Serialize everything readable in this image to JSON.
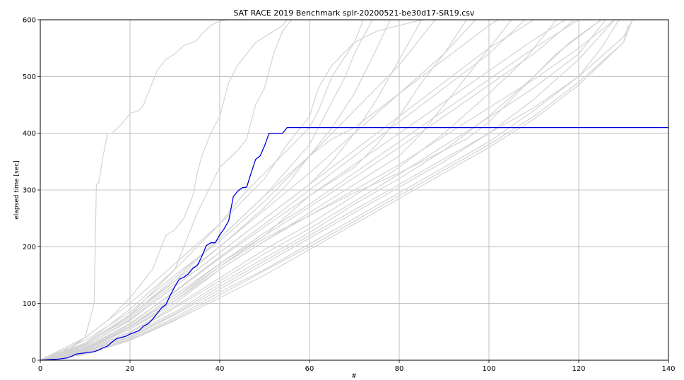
{
  "chart_data": {
    "type": "line",
    "title": "SAT RACE 2019 Benchmark splr-20200521-be30d17-SR19.csv",
    "xlabel": "#",
    "ylabel": "elapsed time [sec]",
    "xlim": [
      0,
      140
    ],
    "ylim": [
      0,
      600
    ],
    "xticks": [
      "0",
      "20",
      "40",
      "60",
      "80",
      "100",
      "120",
      "140"
    ],
    "yticks": [
      "0",
      "100",
      "200",
      "300",
      "400",
      "500",
      "600"
    ],
    "xtick_values": [
      0,
      20,
      40,
      60,
      80,
      100,
      120,
      140
    ],
    "ytick_values": [
      0,
      100,
      200,
      300,
      400,
      500,
      600
    ],
    "grid": true,
    "highlight_color": "#0000dd",
    "background_color": "#d3d3d3",
    "highlight": {
      "x": [
        0,
        2,
        4,
        6,
        7,
        8,
        10,
        12,
        13,
        14,
        15,
        16,
        17,
        18,
        19,
        20,
        21,
        22,
        23,
        24,
        25,
        26,
        27,
        28,
        29,
        30,
        31,
        32,
        33,
        34,
        35,
        36,
        37,
        38,
        39,
        40,
        41,
        42,
        43,
        44,
        45,
        46,
        47,
        48,
        49,
        50,
        51,
        52,
        53,
        54,
        55,
        60,
        80,
        100,
        120,
        140
      ],
      "y": [
        0,
        1,
        2,
        4,
        7,
        11,
        13,
        15,
        18,
        22,
        25,
        32,
        38,
        40,
        42,
        46,
        49,
        52,
        60,
        64,
        72,
        82,
        92,
        98,
        115,
        130,
        143,
        146,
        152,
        162,
        167,
        183,
        202,
        207,
        207,
        221,
        232,
        246,
        288,
        298,
        304,
        305,
        330,
        354,
        360,
        378,
        400,
        400,
        400,
        400,
        410,
        410,
        410,
        410,
        410,
        410
      ]
    },
    "background_series": [
      {
        "x": [
          0,
          5,
          10,
          11,
          12,
          12.5,
          13,
          14,
          15,
          16,
          18,
          20,
          22,
          23,
          24,
          25,
          26,
          28,
          30,
          32,
          34,
          35,
          36,
          38,
          40,
          42,
          44,
          46
        ],
        "y": [
          0,
          10,
          40,
          70,
          100,
          310,
          312,
          360,
          400,
          400,
          415,
          435,
          440,
          450,
          470,
          490,
          510,
          530,
          540,
          555,
          560,
          565,
          575,
          590,
          598,
          600,
          600,
          600
        ]
      },
      {
        "x": [
          0,
          5,
          10,
          15,
          20,
          25,
          28,
          30,
          32,
          34,
          35,
          36,
          38,
          40,
          42,
          44,
          46,
          48,
          50,
          52,
          54,
          55,
          56
        ],
        "y": [
          0,
          15,
          40,
          70,
          110,
          160,
          220,
          230,
          250,
          290,
          330,
          360,
          400,
          430,
          490,
          520,
          540,
          560,
          570,
          580,
          590,
          600,
          600
        ]
      },
      {
        "x": [
          0,
          10,
          20,
          30,
          35,
          40,
          44,
          46,
          48,
          50,
          52,
          54,
          56
        ],
        "y": [
          0,
          30,
          80,
          160,
          260,
          340,
          370,
          390,
          450,
          480,
          540,
          580,
          600
        ]
      },
      {
        "x": [
          0,
          10,
          20,
          30,
          40,
          45,
          50,
          55,
          60,
          62,
          65,
          70,
          72
        ],
        "y": [
          0,
          40,
          100,
          170,
          240,
          290,
          330,
          370,
          410,
          440,
          500,
          560,
          600
        ]
      },
      {
        "x": [
          0,
          10,
          20,
          30,
          40,
          50,
          55,
          60,
          65,
          70,
          75,
          78
        ],
        "y": [
          0,
          30,
          80,
          140,
          200,
          270,
          310,
          360,
          410,
          470,
          550,
          600
        ]
      },
      {
        "x": [
          0,
          10,
          20,
          30,
          40,
          50,
          60,
          65,
          70,
          75,
          80,
          85
        ],
        "y": [
          0,
          25,
          70,
          130,
          190,
          250,
          310,
          350,
          400,
          460,
          530,
          600
        ]
      },
      {
        "x": [
          0,
          10,
          20,
          30,
          40,
          50,
          60,
          70,
          75,
          80,
          85,
          90,
          95
        ],
        "y": [
          0,
          20,
          60,
          110,
          170,
          220,
          290,
          340,
          380,
          430,
          490,
          540,
          600
        ]
      },
      {
        "x": [
          0,
          10,
          20,
          30,
          40,
          50,
          60,
          70,
          80,
          85,
          90,
          95,
          100,
          105
        ],
        "y": [
          0,
          20,
          55,
          100,
          160,
          210,
          260,
          310,
          360,
          400,
          450,
          500,
          550,
          600
        ]
      },
      {
        "x": [
          0,
          10,
          20,
          30,
          40,
          50,
          60,
          70,
          80,
          90,
          100,
          108,
          115
        ],
        "y": [
          0,
          18,
          50,
          95,
          145,
          195,
          240,
          290,
          340,
          400,
          470,
          530,
          600
        ]
      },
      {
        "x": [
          0,
          10,
          20,
          30,
          40,
          50,
          60,
          70,
          80,
          90,
          100,
          110,
          118,
          125
        ],
        "y": [
          0,
          15,
          45,
          85,
          135,
          180,
          225,
          275,
          320,
          370,
          430,
          500,
          560,
          600
        ]
      },
      {
        "x": [
          0,
          10,
          20,
          30,
          40,
          50,
          60,
          70,
          80,
          90,
          100,
          110,
          120,
          128
        ],
        "y": [
          0,
          15,
          40,
          80,
          125,
          170,
          215,
          260,
          305,
          350,
          400,
          460,
          530,
          600
        ]
      },
      {
        "x": [
          0,
          10,
          20,
          30,
          40,
          50,
          60,
          70,
          80,
          90,
          100,
          110,
          120,
          130,
          132
        ],
        "y": [
          0,
          12,
          38,
          75,
          120,
          160,
          205,
          250,
          295,
          340,
          385,
          440,
          500,
          570,
          600
        ]
      },
      {
        "x": [
          0,
          10,
          20,
          30,
          40,
          50,
          60,
          70,
          80,
          90,
          100,
          110,
          120,
          130,
          131
        ],
        "y": [
          0,
          10,
          35,
          70,
          110,
          150,
          195,
          240,
          285,
          330,
          375,
          425,
          485,
          560,
          590
        ]
      },
      {
        "x": [
          0,
          10,
          20,
          30,
          40,
          50,
          60,
          70,
          80,
          90,
          100,
          110,
          120,
          128
        ],
        "y": [
          0,
          18,
          55,
          105,
          160,
          210,
          255,
          300,
          345,
          395,
          445,
          495,
          550,
          600
        ]
      },
      {
        "x": [
          0,
          10,
          20,
          30,
          40,
          50,
          60,
          70,
          80,
          90,
          100,
          110,
          120
        ],
        "y": [
          0,
          20,
          60,
          115,
          170,
          225,
          275,
          330,
          385,
          440,
          495,
          550,
          600
        ]
      },
      {
        "x": [
          0,
          10,
          20,
          30,
          40,
          50,
          60,
          70,
          80,
          90,
          100,
          110,
          117
        ],
        "y": [
          0,
          22,
          65,
          120,
          180,
          235,
          290,
          345,
          400,
          455,
          510,
          565,
          600
        ]
      },
      {
        "x": [
          0,
          10,
          20,
          30,
          40,
          50,
          60,
          70,
          80,
          90,
          100,
          110
        ],
        "y": [
          0,
          25,
          70,
          130,
          190,
          250,
          310,
          370,
          430,
          490,
          550,
          600
        ]
      },
      {
        "x": [
          0,
          10,
          20,
          30,
          40,
          50,
          55,
          60,
          65,
          70,
          75,
          80,
          85,
          90,
          95,
          100,
          102
        ],
        "y": [
          0,
          35,
          85,
          150,
          210,
          280,
          320,
          360,
          390,
          410,
          440,
          470,
          500,
          530,
          560,
          590,
          600
        ]
      },
      {
        "x": [
          0,
          10,
          20,
          30,
          40,
          50,
          55,
          60,
          62,
          65,
          70,
          75,
          80,
          85
        ],
        "y": [
          0,
          30,
          90,
          160,
          240,
          320,
          380,
          430,
          480,
          520,
          560,
          580,
          590,
          600
        ]
      },
      {
        "x": [
          0,
          10,
          20,
          30,
          40,
          50,
          60,
          64,
          68,
          70,
          74
        ],
        "y": [
          0,
          28,
          75,
          140,
          215,
          290,
          380,
          440,
          500,
          540,
          600
        ]
      },
      {
        "x": [
          0,
          10,
          20,
          30,
          40,
          50,
          60,
          70,
          80,
          90,
          95,
          100,
          105,
          110,
          115,
          120,
          125
        ],
        "y": [
          0,
          20,
          55,
          105,
          165,
          215,
          255,
          295,
          330,
          370,
          390,
          420,
          460,
          500,
          540,
          570,
          600
        ]
      },
      {
        "x": [
          0,
          10,
          20,
          30,
          40,
          50,
          60,
          70,
          80,
          90,
          100,
          110,
          120,
          125,
          129
        ],
        "y": [
          0,
          14,
          42,
          82,
          130,
          175,
          220,
          265,
          310,
          355,
          400,
          445,
          500,
          550,
          600
        ]
      },
      {
        "x": [
          0,
          10,
          20,
          30,
          40,
          50,
          60,
          70,
          80,
          90,
          100,
          110,
          120,
          130,
          132
        ],
        "y": [
          0,
          13,
          36,
          72,
          115,
          158,
          200,
          245,
          290,
          335,
          380,
          430,
          490,
          560,
          600
        ]
      },
      {
        "x": [
          0,
          10,
          20,
          30,
          40,
          50,
          60,
          70,
          80,
          90,
          100,
          110,
          120,
          126
        ],
        "y": [
          0,
          16,
          48,
          92,
          140,
          188,
          232,
          280,
          328,
          378,
          428,
          480,
          540,
          600
        ]
      },
      {
        "x": [
          0,
          10,
          20,
          30,
          40,
          50,
          60,
          70,
          80,
          90,
          100,
          110,
          119
        ],
        "y": [
          0,
          19,
          58,
          110,
          165,
          220,
          270,
          322,
          375,
          430,
          485,
          540,
          600
        ]
      },
      {
        "x": [
          0,
          10,
          20,
          30,
          40,
          50,
          60,
          70,
          80,
          90,
          100,
          108
        ],
        "y": [
          0,
          21,
          63,
          122,
          182,
          240,
          300,
          360,
          420,
          480,
          540,
          600
        ]
      },
      {
        "x": [
          0,
          10,
          20,
          30,
          40,
          50,
          60,
          70,
          80,
          90,
          97
        ],
        "y": [
          0,
          24,
          72,
          135,
          200,
          265,
          330,
          400,
          470,
          540,
          600
        ]
      },
      {
        "x": [
          0,
          10,
          20,
          30,
          40,
          50,
          60,
          70,
          80,
          88
        ],
        "y": [
          0,
          27,
          78,
          145,
          215,
          290,
          360,
          440,
          520,
          600
        ]
      }
    ]
  }
}
